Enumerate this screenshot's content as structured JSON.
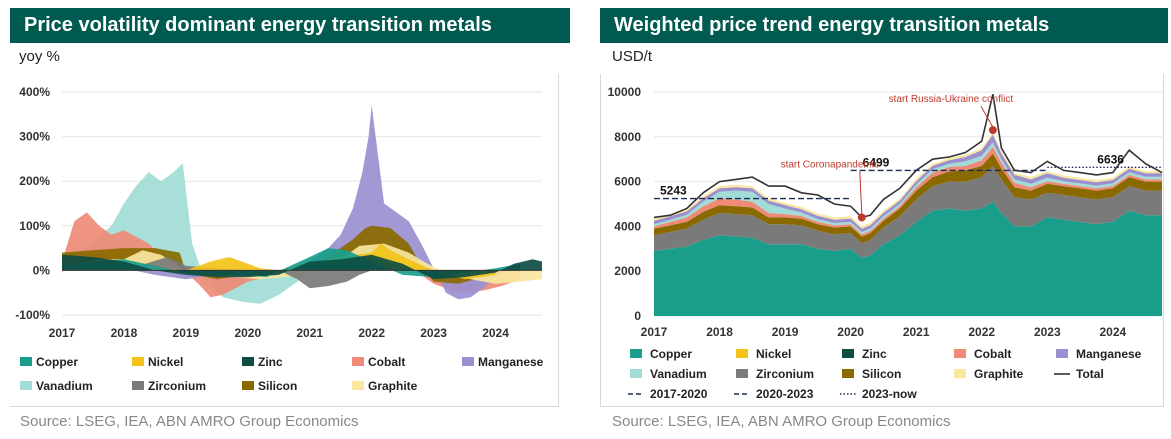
{
  "left": {
    "title": "Price volatility dominant energy transition metals",
    "unit": "yoy %",
    "source": "Source: LSEG, IEA, ABN AMRO Group Economics"
  },
  "right": {
    "title": "Weighted price trend energy transition metals",
    "unit": "USD/t",
    "source": "Source: LSEG, IEA, ABN AMRO Group Economics"
  },
  "colors": {
    "Copper": "#1a9e8c",
    "Nickel": "#f2c318",
    "Zinc": "#0d4d44",
    "Cobalt": "#ee8a77",
    "Manganese": "#9a8fcf",
    "Vanadium": "#a2dcd6",
    "Zirconium": "#7a7a7a",
    "Silicon": "#8a6a00",
    "Graphite": "#f9e6a0",
    "Total": "#333333",
    "title_bar": "#005a4f",
    "annotation": "#c0392b"
  },
  "chart_data": [
    {
      "type": "area",
      "title": "Price volatility dominant energy transition metals",
      "ylabel": "yoy %",
      "xlim": [
        2017.0,
        2024.75
      ],
      "ylim": [
        -100,
        400
      ],
      "x_ticks": [
        "2017",
        "2018",
        "2019",
        "2020",
        "2021",
        "2022",
        "2023",
        "2024"
      ],
      "y_ticks": [
        "400%",
        "300%",
        "200%",
        "100%",
        "0%",
        "-100%"
      ],
      "y_tick_values": [
        400,
        300,
        200,
        100,
        0,
        -100
      ],
      "legend": [
        "Copper",
        "Nickel",
        "Zinc",
        "Cobalt",
        "Manganese",
        "Vanadium",
        "Zirconium",
        "Silicon",
        "Graphite"
      ],
      "series": [
        {
          "name": "Vanadium",
          "x": [
            2017.0,
            2017.4,
            2017.8,
            2018.0,
            2018.2,
            2018.4,
            2018.6,
            2018.8,
            2018.95,
            2019.1,
            2019.3,
            2019.6,
            2019.9,
            2020.2,
            2020.5,
            2020.8,
            2021.0,
            2021.2,
            2022.0,
            2022.5,
            2023.0
          ],
          "y": [
            20,
            55,
            100,
            150,
            190,
            220,
            200,
            220,
            240,
            60,
            -20,
            -60,
            -70,
            -75,
            -55,
            -25,
            0,
            20,
            20,
            0,
            0
          ]
        },
        {
          "name": "Cobalt",
          "x": [
            2017.0,
            2017.2,
            2017.4,
            2017.6,
            2017.8,
            2018.0,
            2018.2,
            2018.4,
            2018.7,
            2019.0,
            2019.2,
            2019.4,
            2019.6,
            2019.8,
            2020.0,
            2020.3,
            2020.6,
            2020.9,
            2021.0,
            2021.3,
            2021.6,
            2021.9,
            2022.2,
            2022.5,
            2022.8,
            2023.0,
            2023.4,
            2023.8,
            2024.1,
            2024.4
          ],
          "y": [
            20,
            110,
            130,
            100,
            80,
            90,
            75,
            60,
            20,
            -5,
            -30,
            -60,
            -55,
            -40,
            -25,
            -15,
            0,
            10,
            20,
            40,
            60,
            75,
            60,
            20,
            -10,
            -30,
            -50,
            -45,
            -35,
            -20
          ]
        },
        {
          "name": "Manganese",
          "x": [
            2017.0,
            2017.5,
            2018.0,
            2018.5,
            2019.0,
            2019.5,
            2020.0,
            2020.5,
            2021.0,
            2021.3,
            2021.5,
            2021.7,
            2021.85,
            2021.95,
            2022.0,
            2022.2,
            2022.4,
            2022.6,
            2022.8,
            2023.0,
            2023.2,
            2023.4,
            2023.6,
            2023.8,
            2024.0
          ],
          "y": [
            20,
            10,
            5,
            -10,
            -20,
            -10,
            -5,
            0,
            20,
            50,
            80,
            140,
            220,
            300,
            370,
            150,
            130,
            110,
            60,
            5,
            -50,
            -65,
            -60,
            -40,
            -15
          ]
        },
        {
          "name": "Silicon",
          "x": [
            2017.0,
            2017.5,
            2018.0,
            2018.5,
            2018.9,
            2019.0,
            2019.5,
            2020.0,
            2020.5,
            2021.0,
            2021.4,
            2021.7,
            2021.9,
            2022.0,
            2022.3,
            2022.6,
            2022.8,
            2023.0,
            2023.4,
            2023.8,
            2024.2
          ],
          "y": [
            40,
            45,
            50,
            50,
            40,
            -5,
            -20,
            -10,
            -5,
            0,
            40,
            70,
            95,
            100,
            95,
            60,
            10,
            -25,
            -30,
            -15,
            -5
          ]
        },
        {
          "name": "Graphite",
          "x": [
            2017.0,
            2017.3,
            2017.6,
            2018.0,
            2018.3,
            2018.6,
            2019.0,
            2019.4,
            2019.8,
            2020.2,
            2020.6,
            2021.0,
            2021.4,
            2021.8,
            2022.2,
            2022.6,
            2022.9,
            2023.2,
            2023.6,
            2024.0,
            2024.4,
            2024.75
          ],
          "y": [
            -5,
            15,
            25,
            25,
            45,
            35,
            0,
            -10,
            -15,
            -20,
            -15,
            -10,
            15,
            55,
            60,
            40,
            15,
            -5,
            -20,
            -30,
            -25,
            -20
          ]
        },
        {
          "name": "Zirconium",
          "x": [
            2017.0,
            2018.0,
            2018.7,
            2019.0,
            2019.5,
            2020.0,
            2020.5,
            2020.8,
            2021.0,
            2021.3,
            2021.6,
            2021.8,
            2022.0,
            2022.5,
            2023.0
          ],
          "y": [
            0,
            0,
            30,
            10,
            5,
            0,
            0,
            -20,
            -40,
            -35,
            -25,
            -10,
            0,
            0,
            0
          ]
        },
        {
          "name": "Nickel",
          "x": [
            2017.0,
            2018.0,
            2019.0,
            2019.4,
            2019.7,
            2020.0,
            2020.2,
            2020.5,
            2021.0,
            2021.5,
            2022.0,
            2022.15,
            2022.3,
            2022.6,
            2023.0,
            2023.5,
            2024.0
          ],
          "y": [
            0,
            10,
            0,
            20,
            30,
            15,
            5,
            0,
            20,
            30,
            40,
            60,
            45,
            25,
            0,
            -20,
            -10
          ]
        },
        {
          "name": "Copper",
          "x": [
            2017.0,
            2017.5,
            2018.0,
            2018.5,
            2019.0,
            2019.5,
            2020.0,
            2020.3,
            2020.6,
            2021.0,
            2021.3,
            2021.6,
            2022.0,
            2022.5,
            2023.0,
            2023.5,
            2024.0,
            2024.4
          ],
          "y": [
            10,
            20,
            25,
            10,
            -5,
            -10,
            -10,
            -15,
            5,
            30,
            50,
            45,
            20,
            -10,
            -15,
            -5,
            5,
            15
          ]
        },
        {
          "name": "Zinc",
          "x": [
            2017.0,
            2017.5,
            2018.0,
            2018.5,
            2019.0,
            2019.5,
            2020.0,
            2020.5,
            2021.0,
            2021.5,
            2022.0,
            2022.5,
            2023.0,
            2023.5,
            2024.0,
            2024.3,
            2024.6,
            2024.75
          ],
          "y": [
            35,
            30,
            20,
            0,
            -10,
            -15,
            -15,
            -10,
            20,
            25,
            35,
            15,
            -20,
            -15,
            -5,
            15,
            25,
            20
          ]
        }
      ]
    },
    {
      "type": "area",
      "title": "Weighted price trend energy transition metals",
      "ylabel": "USD/t",
      "xlim": [
        2017.0,
        2024.75
      ],
      "ylim": [
        0,
        10000
      ],
      "x_ticks": [
        "2017",
        "2018",
        "2019",
        "2020",
        "2021",
        "2022",
        "2023",
        "2024"
      ],
      "y_ticks": [
        "10000",
        "8000",
        "6000",
        "4000",
        "2000",
        "0"
      ],
      "y_tick_values": [
        10000,
        8000,
        6000,
        4000,
        2000,
        0
      ],
      "legend": [
        "Copper",
        "Nickel",
        "Zinc",
        "Cobalt",
        "Manganese",
        "Vanadium",
        "Zirconium",
        "Silicon",
        "Graphite",
        "Total",
        "2017-2020",
        "2020-2023",
        "2023-now"
      ],
      "x": [
        2017.0,
        2017.25,
        2017.5,
        2017.75,
        2018.0,
        2018.25,
        2018.5,
        2018.75,
        2019.0,
        2019.25,
        2019.5,
        2019.75,
        2020.0,
        2020.17,
        2020.3,
        2020.5,
        2020.75,
        2021.0,
        2021.25,
        2021.5,
        2021.75,
        2022.0,
        2022.17,
        2022.3,
        2022.5,
        2022.75,
        2023.0,
        2023.25,
        2023.5,
        2023.75,
        2024.0,
        2024.25,
        2024.5,
        2024.75
      ],
      "series": [
        {
          "name": "Copper",
          "values": [
            2900,
            3000,
            3100,
            3400,
            3600,
            3550,
            3500,
            3200,
            3200,
            3200,
            3000,
            2900,
            3000,
            2600,
            2700,
            3200,
            3600,
            4200,
            4700,
            4800,
            4700,
            4800,
            5100,
            4600,
            4000,
            4000,
            4400,
            4300,
            4200,
            4100,
            4200,
            4700,
            4500,
            4500
          ]
        },
        {
          "name": "Nickel",
          "values": [
            0,
            0,
            0,
            0,
            0,
            0,
            0,
            0,
            0,
            0,
            0,
            0,
            0,
            0,
            0,
            0,
            0,
            0,
            0,
            0,
            0,
            0,
            0,
            0,
            0,
            0,
            0,
            0,
            0,
            0,
            0,
            0,
            0,
            0
          ]
        },
        {
          "name": "Zinc",
          "values": [
            0,
            0,
            0,
            0,
            0,
            0,
            0,
            0,
            0,
            0,
            0,
            0,
            0,
            0,
            0,
            0,
            0,
            0,
            0,
            0,
            0,
            0,
            0,
            0,
            0,
            0,
            0,
            0,
            0,
            0,
            0,
            0,
            0,
            0
          ]
        },
        {
          "name": "Zirconium",
          "values": [
            700,
            750,
            800,
            900,
            1000,
            1000,
            1000,
            900,
            900,
            850,
            800,
            750,
            700,
            650,
            700,
            750,
            850,
            1000,
            1100,
            1200,
            1300,
            1400,
            1600,
            1500,
            1300,
            1200,
            1100,
            1100,
            1100,
            1100,
            1100,
            1100,
            1100,
            1100
          ]
        },
        {
          "name": "Silicon",
          "values": [
            300,
            300,
            300,
            350,
            350,
            350,
            350,
            300,
            300,
            300,
            300,
            300,
            300,
            300,
            300,
            300,
            350,
            400,
            400,
            450,
            500,
            500,
            550,
            500,
            450,
            400,
            400,
            400,
            400,
            400,
            400,
            400,
            400,
            400
          ]
        },
        {
          "name": "Cobalt",
          "values": [
            100,
            150,
            200,
            250,
            300,
            300,
            250,
            200,
            150,
            120,
            100,
            100,
            100,
            100,
            100,
            100,
            100,
            150,
            200,
            200,
            200,
            250,
            300,
            250,
            200,
            150,
            120,
            100,
            100,
            100,
            100,
            100,
            100,
            100
          ]
        },
        {
          "name": "Vanadium",
          "values": [
            100,
            100,
            120,
            200,
            300,
            400,
            450,
            400,
            250,
            150,
            120,
            100,
            100,
            100,
            100,
            100,
            100,
            120,
            150,
            150,
            200,
            200,
            200,
            150,
            150,
            150,
            150,
            120,
            120,
            120,
            120,
            120,
            120,
            120
          ]
        },
        {
          "name": "Manganese",
          "values": [
            150,
            150,
            150,
            150,
            150,
            150,
            150,
            150,
            150,
            150,
            150,
            150,
            150,
            150,
            150,
            150,
            150,
            150,
            150,
            150,
            200,
            250,
            350,
            250,
            200,
            200,
            200,
            150,
            150,
            150,
            150,
            150,
            150,
            150
          ]
        },
        {
          "name": "Graphite",
          "values": [
            100,
            100,
            100,
            100,
            100,
            100,
            100,
            100,
            100,
            100,
            100,
            100,
            100,
            100,
            100,
            100,
            100,
            100,
            100,
            100,
            100,
            100,
            100,
            100,
            100,
            100,
            100,
            100,
            100,
            100,
            100,
            100,
            100,
            100
          ]
        },
        {
          "name": "Total",
          "values": [
            4400,
            4500,
            4800,
            5500,
            6000,
            6100,
            6200,
            5800,
            5800,
            5500,
            5400,
            5000,
            4900,
            4400,
            4500,
            5200,
            5700,
            6500,
            7000,
            7100,
            7300,
            7800,
            9900,
            7500,
            6500,
            6400,
            6900,
            6500,
            6400,
            6300,
            6400,
            7400,
            6800,
            6400
          ]
        }
      ],
      "reference_lines": [
        {
          "name": "2017-2020",
          "value": 5243,
          "x_range": [
            2017.0,
            2020.0
          ],
          "label": "5243",
          "style": "dashed"
        },
        {
          "name": "2020-2023",
          "value": 6499,
          "x_range": [
            2020.0,
            2023.0
          ],
          "label": "6499",
          "style": "dashed"
        },
        {
          "name": "2023-now",
          "value": 6636,
          "x_range": [
            2023.0,
            2024.75
          ],
          "label": "6636",
          "style": "dotted"
        }
      ],
      "annotations": [
        {
          "text": "start Coronapandemic",
          "x": 2020.17,
          "y": 4400
        },
        {
          "text": "start Russia-Ukraine conflict",
          "x": 2022.17,
          "y": 8300
        }
      ]
    }
  ]
}
